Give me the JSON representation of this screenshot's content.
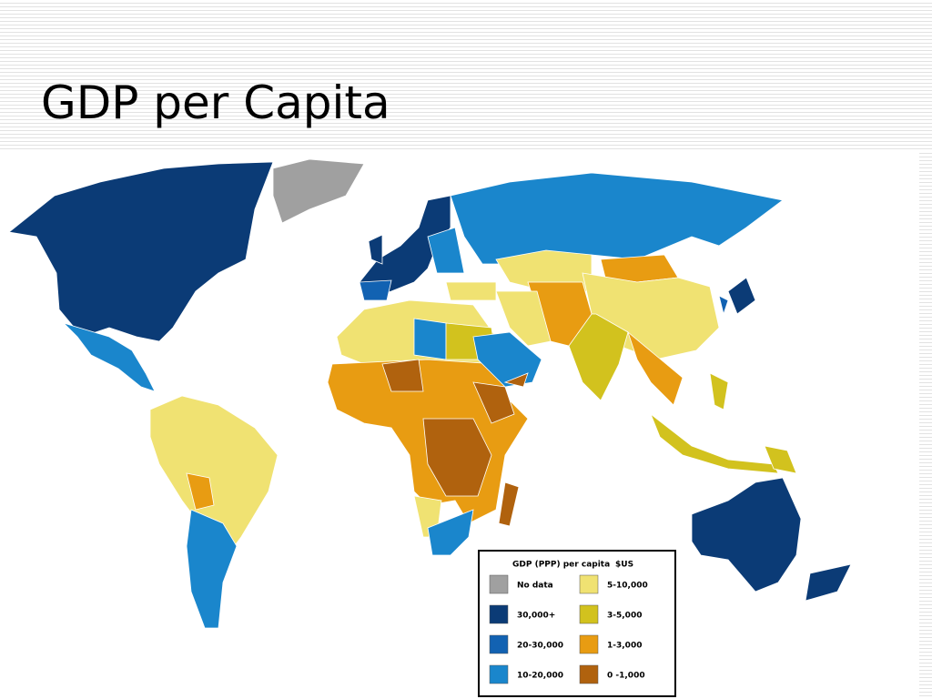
{
  "header": {
    "title": "GDP per Capita"
  },
  "legend": {
    "title": "GDP (PPP) per capita",
    "unit": "$US",
    "items": [
      {
        "label": "No data",
        "color": "#a0a0a0"
      },
      {
        "label": "30,000+",
        "color": "#0b3b76"
      },
      {
        "label": "20-30,000",
        "color": "#1262b2"
      },
      {
        "label": "10-20,000",
        "color": "#1a86cc"
      },
      {
        "label": "5-10,000",
        "color": "#f0e272"
      },
      {
        "label": "3-5,000",
        "color": "#d2c21e"
      },
      {
        "label": "1-3,000",
        "color": "#e89c12"
      },
      {
        "label": "0 -1,000",
        "color": "#b0620e"
      }
    ]
  }
}
